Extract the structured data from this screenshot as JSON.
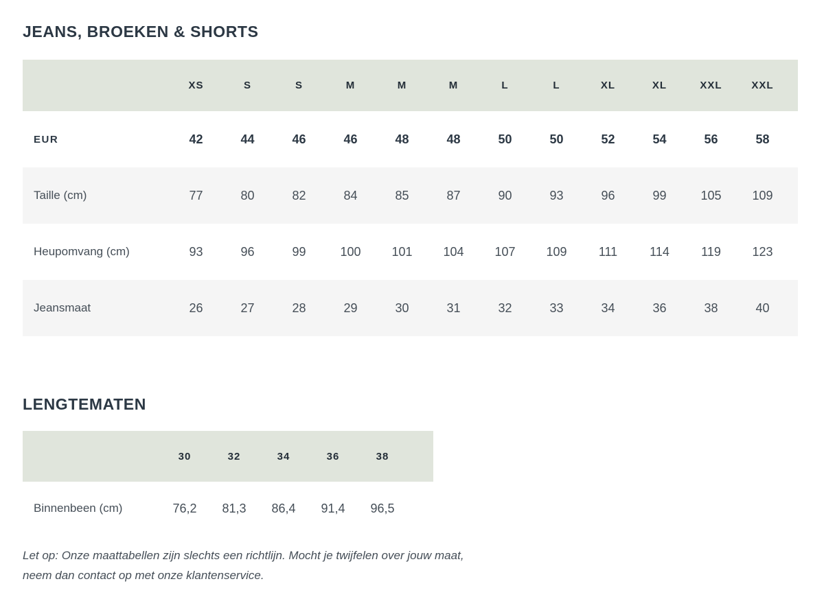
{
  "sections": [
    {
      "title": "JEANS, BROEKEN & SHORTS",
      "table": {
        "size_headers": [
          "XS",
          "S",
          "S",
          "M",
          "M",
          "M",
          "L",
          "L",
          "XL",
          "XL",
          "XXL",
          "XXL"
        ],
        "rows": [
          {
            "label": "EUR",
            "bold": true,
            "values": [
              "42",
              "44",
              "46",
              "46",
              "48",
              "48",
              "50",
              "50",
              "52",
              "54",
              "56",
              "58"
            ]
          },
          {
            "label": "Taille (cm)",
            "bold": false,
            "values": [
              "77",
              "80",
              "82",
              "84",
              "85",
              "87",
              "90",
              "93",
              "96",
              "99",
              "105",
              "109"
            ]
          },
          {
            "label": "Heupomvang (cm)",
            "bold": false,
            "values": [
              "93",
              "96",
              "99",
              "100",
              "101",
              "104",
              "107",
              "109",
              "111",
              "114",
              "119",
              "123"
            ]
          },
          {
            "label": "Jeansmaat",
            "bold": false,
            "values": [
              "26",
              "27",
              "28",
              "29",
              "30",
              "31",
              "32",
              "33",
              "34",
              "36",
              "38",
              "40"
            ]
          }
        ]
      }
    },
    {
      "title": "LENGTEMATEN",
      "table": {
        "size_headers": [
          "30",
          "32",
          "34",
          "36",
          "38"
        ],
        "rows": [
          {
            "label": "Binnenbeen (cm)",
            "bold": false,
            "values": [
              "76,2",
              "81,3",
              "86,4",
              "91,4",
              "96,5"
            ]
          }
        ]
      }
    }
  ],
  "footer": {
    "line1": "Let op: Onze maattabellen zijn slechts een richtlijn. Mocht je twijfelen over jouw maat,",
    "line2": "neem dan contact op met onze klantenservice."
  },
  "colors": {
    "header_band": "#e0e5dc",
    "stripe": "#f5f5f5",
    "heading_text": "#2c3844",
    "body_text": "#454e57"
  }
}
